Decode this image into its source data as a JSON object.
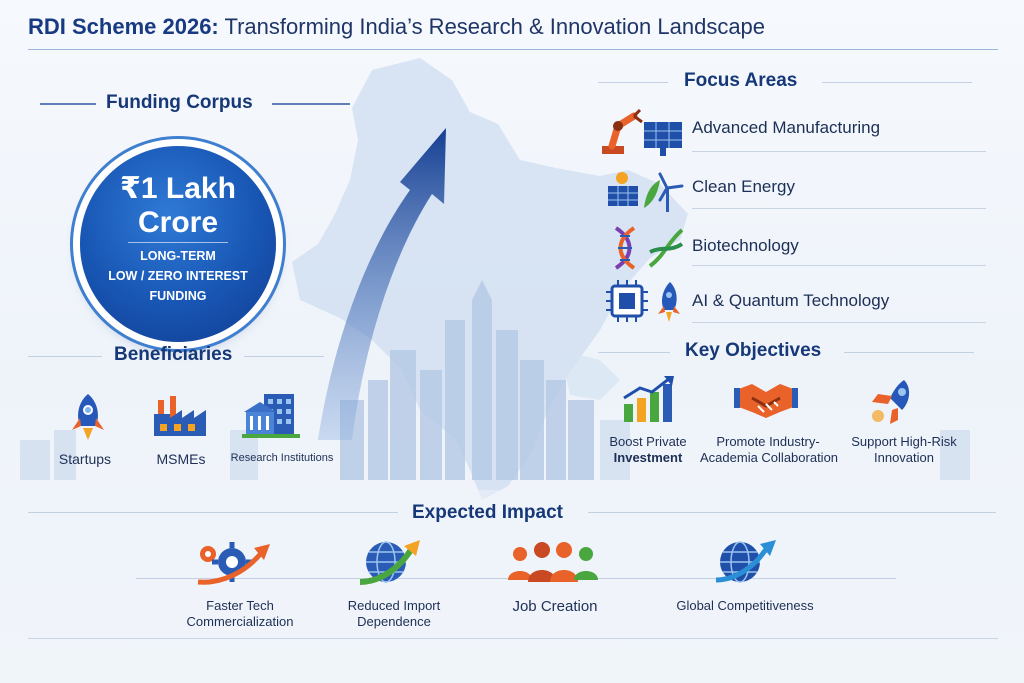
{
  "title": {
    "bold": "RDI Scheme 2026:",
    "rest": "Transforming India’s Research & Innovation Landscape"
  },
  "funding": {
    "heading": "Funding Corpus",
    "amount_line1": "₹1 Lakh",
    "amount_line2": "Crore",
    "desc_line1": "LONG-TERM",
    "desc_line2": "LOW / ZERO INTEREST",
    "desc_line3": "FUNDING"
  },
  "beneficiaries": {
    "heading": "Beneficiaries",
    "items": [
      {
        "label": "Startups",
        "icon": "rocket-icon"
      },
      {
        "label": "MSMEs",
        "icon": "factory-icon"
      },
      {
        "label": "Research Institutions",
        "icon": "institution-building-icon"
      }
    ]
  },
  "focus": {
    "heading": "Focus Areas",
    "items": [
      {
        "label": "Advanced Manufacturing",
        "icon": "robot-arm-solar-icon"
      },
      {
        "label": "Clean Energy",
        "icon": "solar-wind-icon"
      },
      {
        "label": "Biotechnology",
        "icon": "dna-icon"
      },
      {
        "label": "AI & Quantum Technology",
        "icon": "chip-rocket-icon"
      }
    ]
  },
  "objectives": {
    "heading": "Key Objectives",
    "items": [
      {
        "line1": "Boost Private",
        "line2": "Investment",
        "icon": "growth-chart-icon"
      },
      {
        "line1": "Promote Industry-",
        "line2": "Academia Collaboration",
        "icon": "handshake-icon"
      },
      {
        "line1": "Support High-Risk",
        "line2": "Innovation",
        "icon": "rocket-icon"
      }
    ]
  },
  "impact": {
    "heading": "Expected Impact",
    "items": [
      {
        "line1": "Faster Tech",
        "line2": "Commercialization",
        "icon": "gear-arrow-icon"
      },
      {
        "line1": "Reduced Import",
        "line2": "Dependence",
        "icon": "globe-arrow-icon"
      },
      {
        "line1": "Job Creation",
        "line2": "",
        "icon": "people-icon"
      },
      {
        "line1": "Global Competitiveness",
        "line2": "",
        "icon": "globe-growth-icon"
      }
    ]
  },
  "colors": {
    "navy": "#173a82",
    "blue": "#1855b3",
    "orange": "#e8622a",
    "green": "#4aa63f"
  }
}
